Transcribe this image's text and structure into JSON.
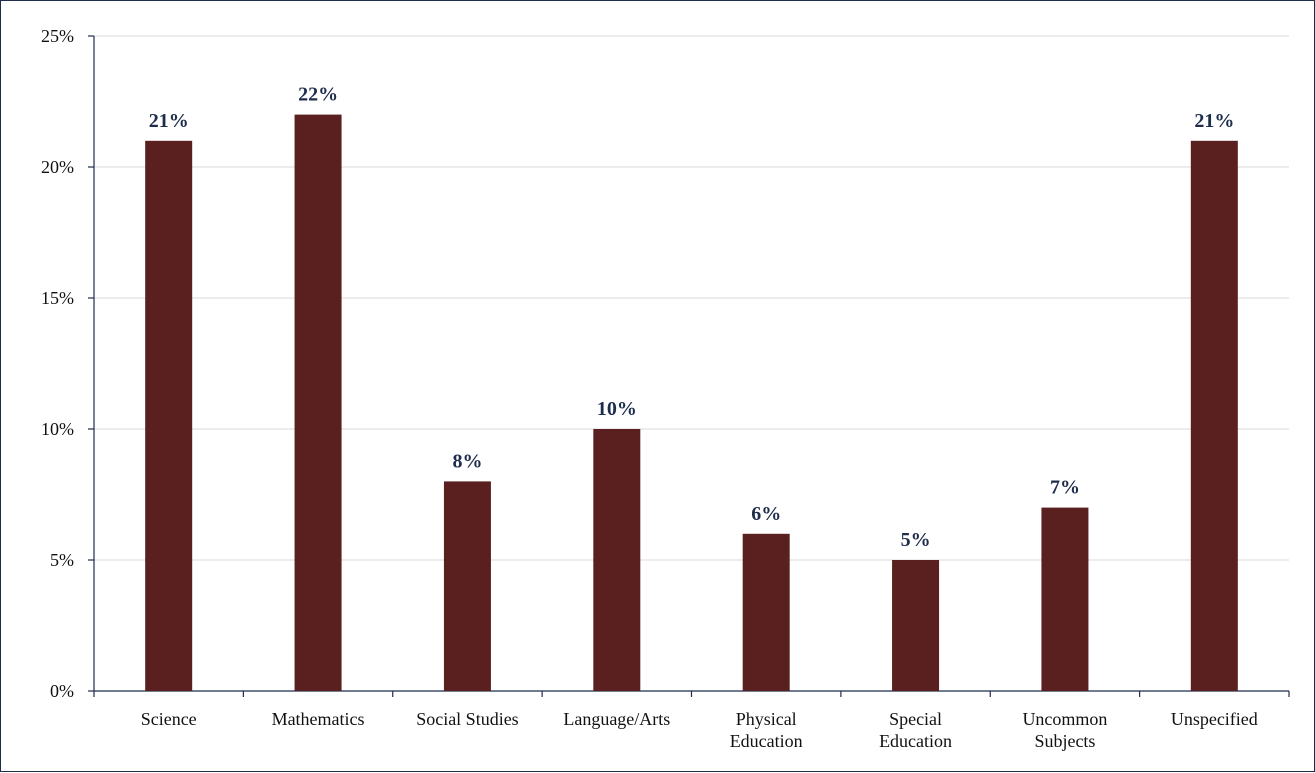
{
  "chart_data": {
    "type": "bar",
    "categories": [
      [
        "Science"
      ],
      [
        "Mathematics"
      ],
      [
        "Social Studies"
      ],
      [
        "Language/Arts"
      ],
      [
        "Physical",
        "Education"
      ],
      [
        "Special",
        "Education"
      ],
      [
        "Uncommon",
        "Subjects"
      ],
      [
        "Unspecified"
      ]
    ],
    "values": [
      21,
      22,
      8,
      10,
      6,
      5,
      7,
      21
    ],
    "data_labels": [
      "21%",
      "22%",
      "8%",
      "10%",
      "6%",
      "5%",
      "7%",
      "21%"
    ],
    "ylim": [
      0,
      25
    ],
    "yticks": [
      0,
      5,
      10,
      15,
      20,
      25
    ],
    "ytick_labels": [
      "0%",
      "5%",
      "10%",
      "15%",
      "20%",
      "25%"
    ],
    "bar_color": "#5a1f1f",
    "label_color": "#1f2d4d",
    "grid": true,
    "title": "",
    "xlabel": "",
    "ylabel": ""
  }
}
